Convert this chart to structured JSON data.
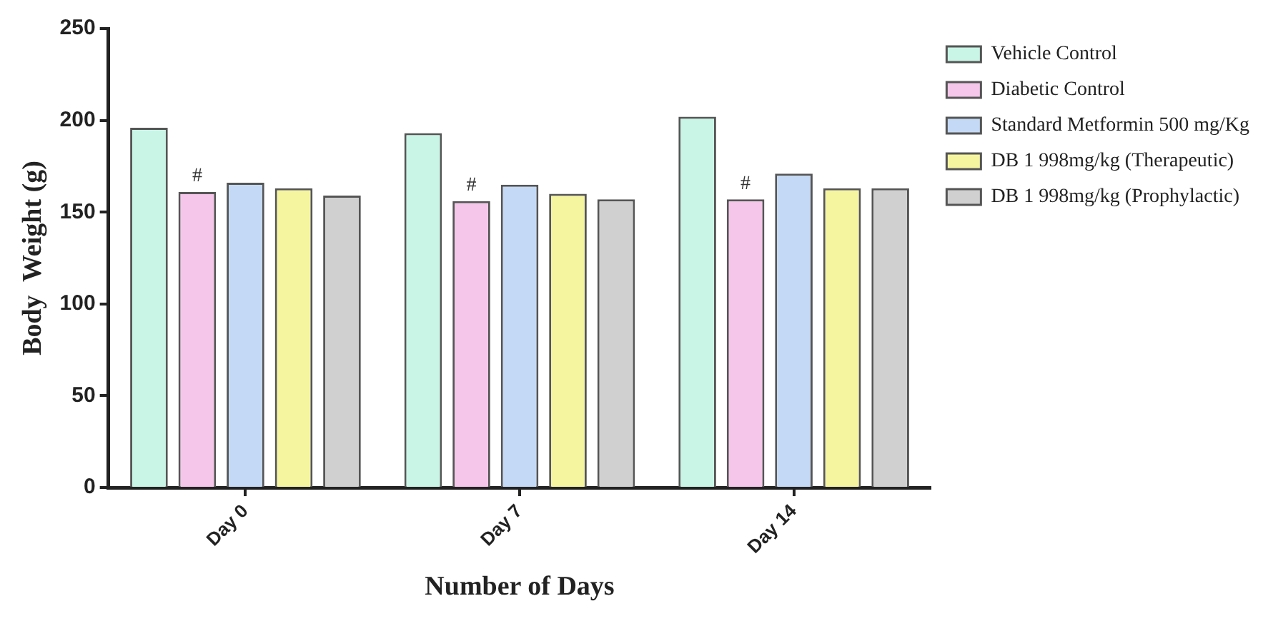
{
  "chart_data": {
    "type": "bar",
    "xlabel": "Number of Days",
    "ylabel": "Body  Weight (g)",
    "categories": [
      "Day 0",
      "Day 7",
      "Day 14"
    ],
    "series": [
      {
        "name": "Vehicle Control",
        "color": "#c8f5e6",
        "values": [
          196,
          193,
          202
        ]
      },
      {
        "name": "Diabetic Control",
        "color": "#f5c6ea",
        "values": [
          161,
          156,
          157
        ],
        "value_labels": [
          "#",
          "#",
          "#"
        ]
      },
      {
        "name": "Standard Metformin 500 mg/Kg",
        "color": "#c4d9f5",
        "values": [
          166,
          165,
          171
        ]
      },
      {
        "name": "DB 1 998mg/kg (Therapeutic)",
        "color": "#f5f5a0",
        "values": [
          163,
          160,
          163
        ]
      },
      {
        "name": "DB 1 998mg/kg (Prophylactic)",
        "color": "#d0d0d0",
        "values": [
          159,
          157,
          163
        ]
      }
    ],
    "ylim": [
      0,
      250
    ],
    "yticks": [
      0,
      50,
      100,
      150,
      200,
      250
    ],
    "grid": false,
    "legend": "right"
  }
}
